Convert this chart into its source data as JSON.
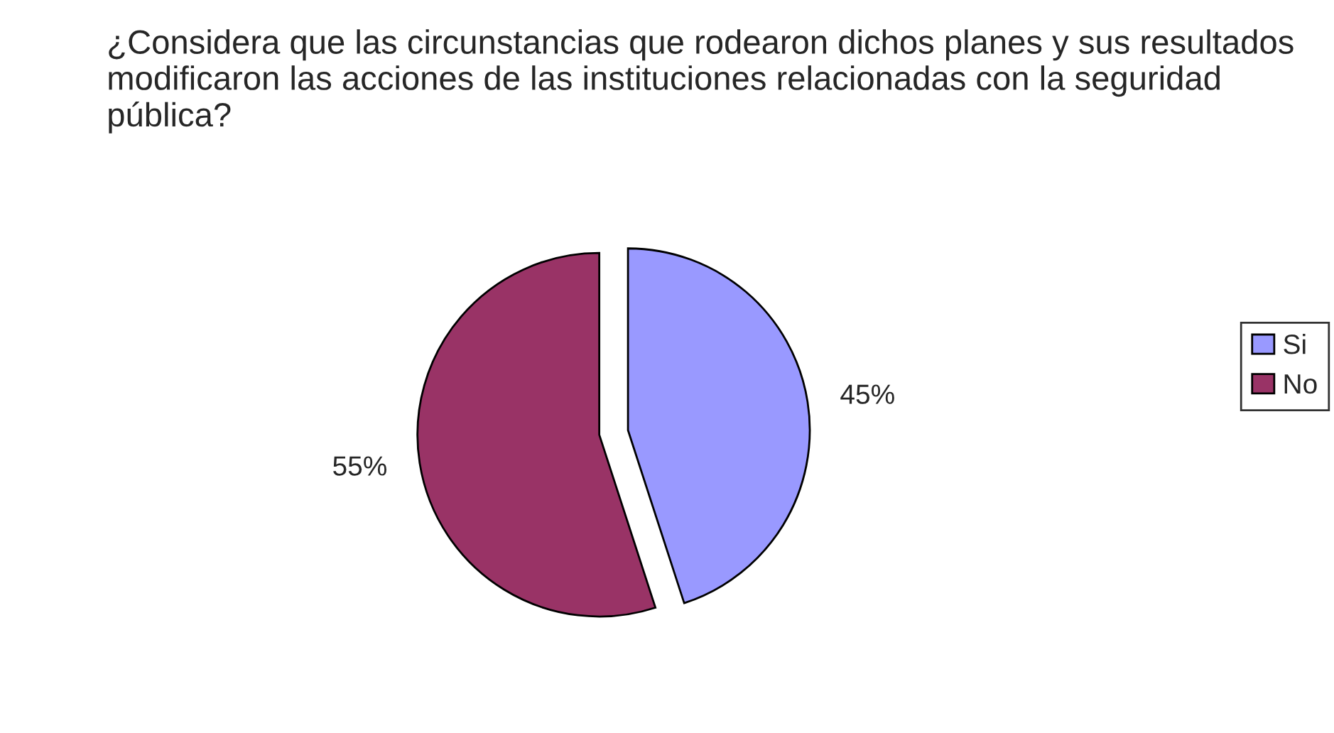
{
  "chart_data": {
    "type": "pie",
    "title": "¿Considera que las circunstancias que rodearon dichos planes y sus resultados modificaron las acciones de las instituciones relacionadas con la seguridad pública?",
    "categories": [
      "Si",
      "No"
    ],
    "values": [
      45,
      55
    ],
    "colors": [
      "#9999ff",
      "#993366"
    ],
    "value_labels": [
      "45%",
      "55%"
    ],
    "legend": "right"
  }
}
